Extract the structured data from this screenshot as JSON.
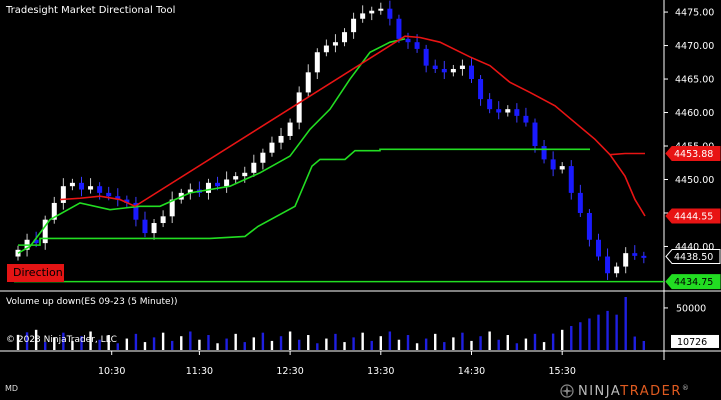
{
  "chart_title": "Tradesight Market Directional Tool",
  "volume_title": "Volume up down(ES 09-23 (5 Minute))",
  "copyright": "© 2023 NinjaTrader, LLC",
  "status_text": "MD",
  "direction_label": "Direction",
  "brand": {
    "prefix": "NINJA",
    "suffix": "TRADER",
    "mark": "®"
  },
  "colors": {
    "background": "#000000",
    "bull_candle": "#ffffff",
    "bear_candle": "#1a1aff",
    "support_line": "#22dd22",
    "resistance_line": "#e81414",
    "down_volume": "#1f1fe0",
    "up_volume": "#ffffff"
  },
  "price_axis": {
    "ticks": [
      "4475.00",
      "4470.00",
      "4465.00",
      "4460.00",
      "4455.00",
      "4450.00",
      "4445.00",
      "4440.00"
    ],
    "tick_values": [
      4475,
      4470,
      4465,
      4460,
      4455,
      4450,
      4445,
      4440
    ],
    "range": [
      4433.5,
      4476.8
    ]
  },
  "price_tags": [
    {
      "label": "4453.88",
      "value": 4453.88,
      "style": "red"
    },
    {
      "label": "4444.55",
      "value": 4444.55,
      "style": "red"
    },
    {
      "label": "4438.50",
      "value": 4438.5,
      "style": "white"
    },
    {
      "label": "4434.75",
      "value": 4434.75,
      "style": "green"
    }
  ],
  "volume_axis": {
    "ticks": [
      "50000"
    ],
    "tick_values": [
      50000
    ],
    "current_label": "10726",
    "current_value": 10726,
    "max": 63000
  },
  "time_axis": {
    "labels": [
      "10:30",
      "11:30",
      "12:30",
      "13:30",
      "14:30",
      "15:30"
    ]
  },
  "chart_data": {
    "type": "candlestick",
    "interval": "5 Minute",
    "instrument": "ES 09-23",
    "bars_count": 70,
    "x_tick_bar_index": [
      10,
      20,
      30,
      40,
      50,
      60
    ],
    "price_range": [
      4433.5,
      4476.8
    ],
    "green_support_level": 4434.75,
    "key_levels": {
      "current_close": 4438.5,
      "red_stop_1": 4453.88,
      "red_stop_2": 4444.55
    },
    "volume_note": "down-volume bars in blue, up-volume bars in white; final bars approx 63000"
  }
}
